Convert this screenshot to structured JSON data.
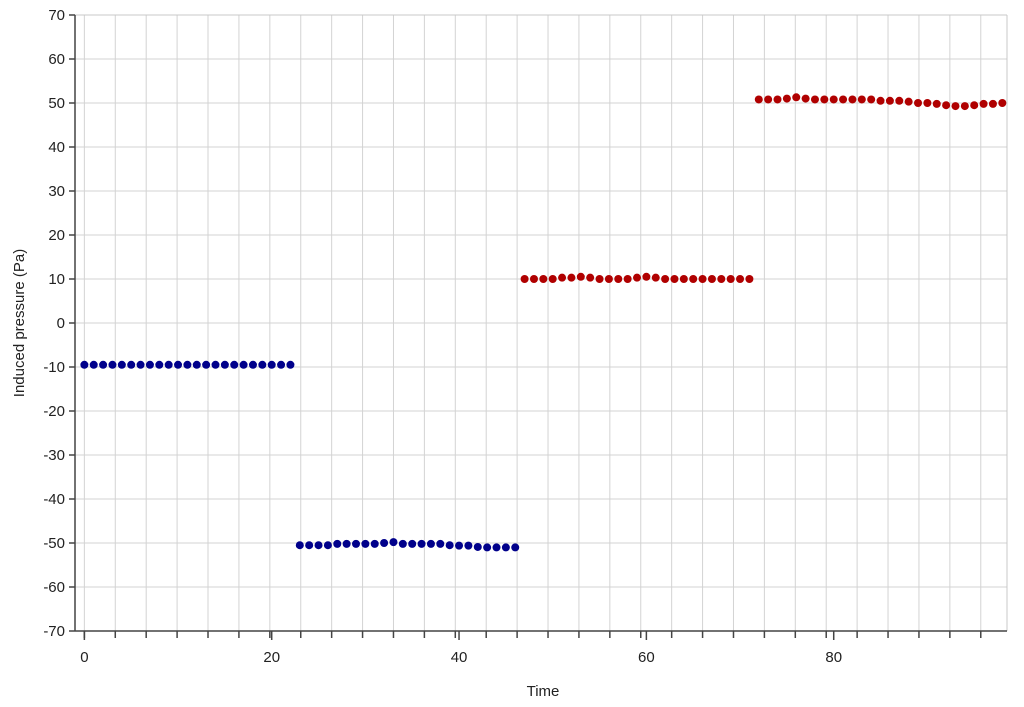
{
  "chart_data": {
    "type": "scatter",
    "title": "",
    "xlabel": "Time",
    "ylabel": "Induced pressure (Pa)",
    "xlim": [
      -1,
      98.5
    ],
    "ylim": [
      -70,
      70
    ],
    "x_ticks": [
      0,
      20,
      40,
      60,
      80
    ],
    "y_ticks": [
      70,
      60,
      50,
      40,
      30,
      20,
      10,
      0,
      -10,
      -20,
      -30,
      -40,
      -50,
      -60,
      -70
    ],
    "x_minor_step": 3.3,
    "grid": true,
    "legend": "none",
    "series": [
      {
        "color": "#00008B",
        "x": [
          0,
          1,
          2,
          3,
          4,
          5,
          6,
          7,
          8,
          9,
          10,
          11,
          12,
          13,
          14,
          15,
          16,
          17,
          18,
          19,
          20,
          21,
          22,
          23,
          24,
          25,
          26,
          27,
          28,
          29,
          30,
          31,
          32,
          33,
          34,
          35,
          36,
          37,
          38,
          39,
          40,
          41,
          42,
          43,
          44,
          45,
          46
        ],
        "y": [
          -9.5,
          -9.5,
          -9.5,
          -9.5,
          -9.5,
          -9.5,
          -9.5,
          -9.5,
          -9.5,
          -9.5,
          -9.5,
          -9.5,
          -9.5,
          -9.5,
          -9.5,
          -9.5,
          -9.5,
          -9.5,
          -9.5,
          -9.5,
          -9.5,
          -9.5,
          -9.5,
          -50.5,
          -50.5,
          -50.5,
          -50.5,
          -50.2,
          -50.2,
          -50.2,
          -50.2,
          -50.2,
          -50.0,
          -49.8,
          -50.2,
          -50.2,
          -50.2,
          -50.2,
          -50.2,
          -50.5,
          -50.6,
          -50.6,
          -50.9,
          -51.0,
          -51.0,
          -51.0,
          -51.0
        ]
      },
      {
        "color": "#B00000",
        "x": [
          47,
          48,
          49,
          50,
          51,
          52,
          53,
          54,
          55,
          56,
          57,
          58,
          59,
          60,
          61,
          62,
          63,
          64,
          65,
          66,
          67,
          68,
          69,
          70,
          71,
          72,
          73,
          74,
          75,
          76,
          77,
          78,
          79,
          80,
          81,
          82,
          83,
          84,
          85,
          86,
          87,
          88,
          89,
          90,
          91,
          92,
          93,
          94,
          95,
          96,
          97,
          98
        ],
        "y": [
          10.0,
          10.0,
          10.0,
          10.0,
          10.3,
          10.3,
          10.5,
          10.3,
          10.0,
          10.0,
          10.0,
          10.0,
          10.3,
          10.5,
          10.3,
          10.0,
          10.0,
          10.0,
          10.0,
          10.0,
          10.0,
          10.0,
          10.0,
          10.0,
          10.0,
          50.8,
          50.8,
          50.8,
          51.0,
          51.3,
          51.0,
          50.8,
          50.8,
          50.8,
          50.8,
          50.8,
          50.8,
          50.8,
          50.5,
          50.5,
          50.5,
          50.3,
          50.0,
          50.0,
          49.8,
          49.5,
          49.3,
          49.3,
          49.5,
          49.8,
          49.8,
          50.0
        ]
      }
    ]
  }
}
